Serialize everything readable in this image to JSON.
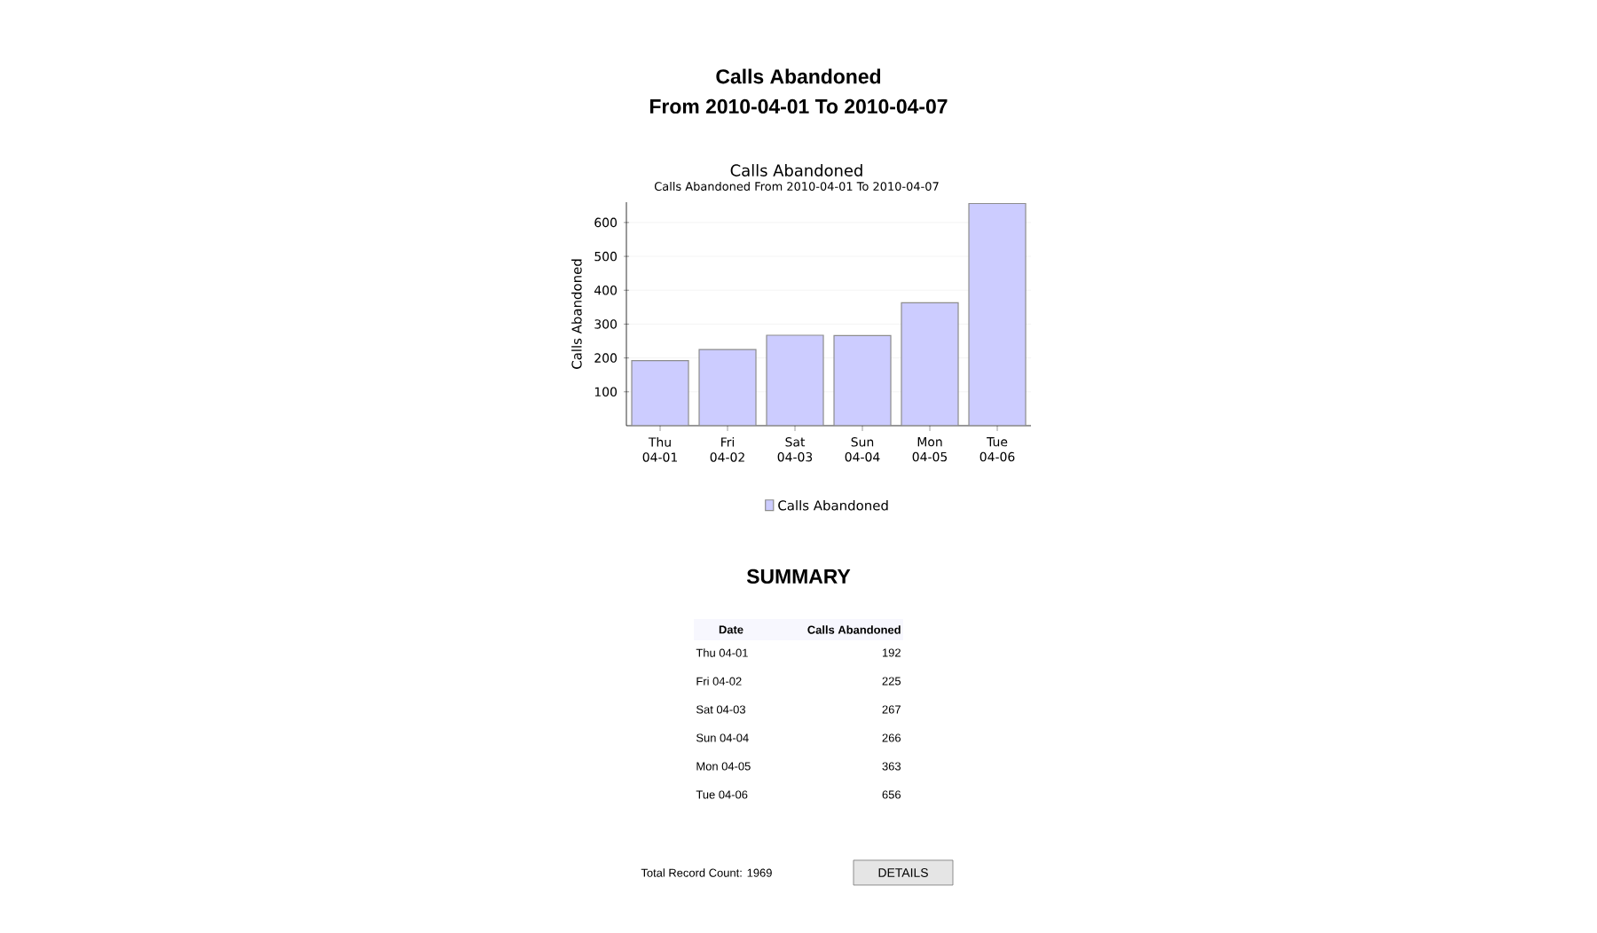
{
  "chart_data": {
    "type": "bar",
    "title": "Calls Abandoned",
    "subtitle": "Calls Abandoned From 2010-04-01 To 2010-04-07",
    "ylabel": "Calls Abandoned",
    "categories": [
      "Thu 04-01",
      "Fri 04-02",
      "Sat 04-03",
      "Sun 04-04",
      "Mon 04-05",
      "Tue 04-06"
    ],
    "series": [
      {
        "name": "Calls Abandoned",
        "color": "#ccccff",
        "values": [
          192,
          225,
          267,
          266,
          363,
          656
        ]
      }
    ],
    "ylim": [
      0,
      660
    ],
    "yticks": [
      100,
      200,
      300,
      400,
      500,
      600
    ],
    "grid": "y",
    "legend": "bottom",
    "annotations": [
      "Calls Abandoned",
      "From 2010-04-01 To 2010-04-07",
      "SUMMARY",
      "Date",
      "Calls Abandoned",
      "Total Record Count: 1969",
      "DETAILS",
      "192",
      "225",
      "267",
      "266",
      "363",
      "656"
    ]
  }
}
